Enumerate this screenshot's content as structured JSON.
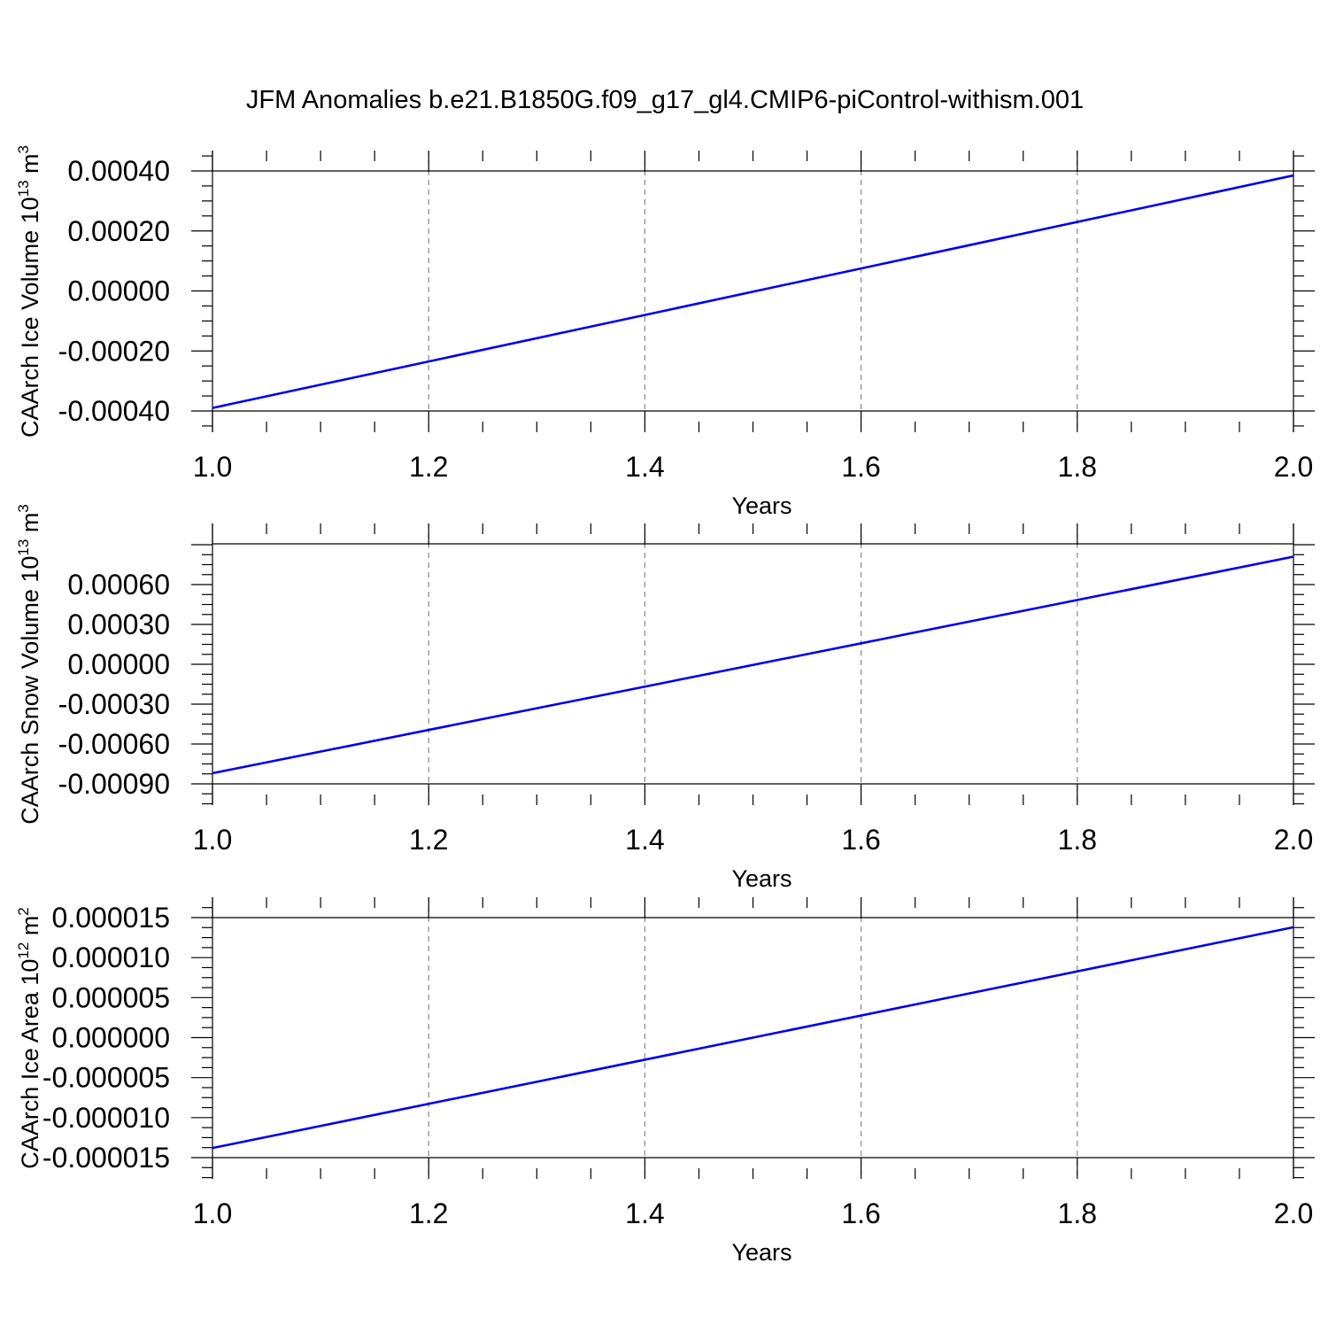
{
  "title": "JFM Anomalies b.e21.B1850G.f09_g17_gl4.CMIP6-piControl-withism.001",
  "colors": {
    "line": "#0000ee",
    "axis": "#000000",
    "grid": "#888888",
    "background": "#ffffff"
  },
  "chart_data": [
    {
      "type": "line",
      "ylabel_main": "CAArch Ice Volume 10",
      "ylabel_exp": "13",
      "ylabel_unit": " m",
      "ylabel_unit_exp": "3",
      "xlabel": "Years",
      "xlim": [
        1.0,
        2.0
      ],
      "ylim": [
        -0.0004,
        0.0004
      ],
      "x_ticks": [
        "1.0",
        "1.2",
        "1.4",
        "1.6",
        "1.8",
        "2.0"
      ],
      "y_ticks": [
        "0.00040",
        "0.00020",
        "0.00000",
        "-0.00020",
        "-0.00040"
      ],
      "y_tick_values": [
        0.0004,
        0.0002,
        0.0,
        -0.0002,
        -0.0004
      ],
      "grid": true,
      "series": [
        {
          "x": [
            1.0,
            2.0
          ],
          "y": [
            -0.00039,
            0.000385
          ]
        }
      ]
    },
    {
      "type": "line",
      "ylabel_main": "CAArch Snow Volume 10",
      "ylabel_exp": "13",
      "ylabel_unit": " m",
      "ylabel_unit_exp": "3",
      "xlabel": "Years",
      "xlim": [
        1.0,
        2.0
      ],
      "ylim": [
        -0.0009,
        0.0009
      ],
      "x_ticks": [
        "1.0",
        "1.2",
        "1.4",
        "1.6",
        "1.8",
        "2.0"
      ],
      "y_ticks": [
        "0.00060",
        "0.00030",
        "0.00000",
        "-0.00030",
        "-0.00060",
        "-0.00090"
      ],
      "y_tick_values": [
        0.0006,
        0.0003,
        0.0,
        -0.0003,
        -0.0006,
        -0.0009
      ],
      "grid": true,
      "series": [
        {
          "x": [
            1.0,
            2.0
          ],
          "y": [
            -0.00082,
            0.00081
          ]
        }
      ]
    },
    {
      "type": "line",
      "ylabel_main": "CAArch Ice Area 10",
      "ylabel_exp": "12",
      "ylabel_unit": " m",
      "ylabel_unit_exp": "2",
      "xlabel": "Years",
      "xlim": [
        1.0,
        2.0
      ],
      "ylim": [
        -1.5e-05,
        1.5e-05
      ],
      "x_ticks": [
        "1.0",
        "1.2",
        "1.4",
        "1.6",
        "1.8",
        "2.0"
      ],
      "y_ticks": [
        "0.000015",
        "0.000010",
        "0.000005",
        "0.000000",
        "-0.000005",
        "-0.000010",
        "-0.000015"
      ],
      "y_tick_values": [
        1.5e-05,
        1e-05,
        5e-06,
        0.0,
        -5e-06,
        -1e-05,
        -1.5e-05
      ],
      "grid": true,
      "series": [
        {
          "x": [
            1.0,
            2.0
          ],
          "y": [
            -1.38e-05,
            1.38e-05
          ]
        }
      ]
    }
  ]
}
